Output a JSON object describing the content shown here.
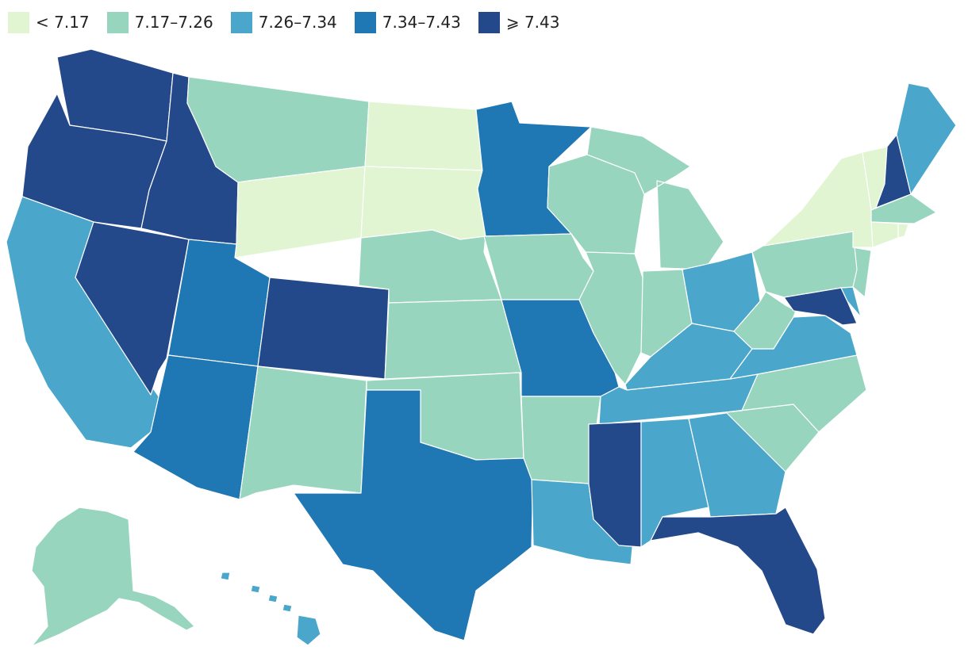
{
  "legend": [
    {
      "label": "< 7.17",
      "color": "#e1f5d2"
    },
    {
      "label": "7.17–7.26",
      "color": "#98d5bf"
    },
    {
      "label": "7.26–7.34",
      "color": "#4aa7cb"
    },
    {
      "label": "7.34–7.43",
      "color": "#1f77b4"
    },
    {
      "label": "⩾ 7.43",
      "color": "#24498a"
    }
  ],
  "states": {
    "WA": 4,
    "OR": 4,
    "CA": 2,
    "NV": 4,
    "ID": 4,
    "MT": 1,
    "WY": 0,
    "UT": 3,
    "AZ": 3,
    "CO": 4,
    "NM": 1,
    "ND": 0,
    "SD": 0,
    "NE": 1,
    "KS": 1,
    "OK": 1,
    "TX": 3,
    "MN": 3,
    "IA": 1,
    "MO": 3,
    "AR": 1,
    "LA": 2,
    "WI": 1,
    "IL": 1,
    "MI": 1,
    "IN": 1,
    "OH": 2,
    "KY": 2,
    "TN": 2,
    "MS": 4,
    "AL": 2,
    "GA": 2,
    "FL": 4,
    "SC": 1,
    "NC": 1,
    "VA": 2,
    "WV": 1,
    "MD": 4,
    "DE": 2,
    "NJ": 1,
    "PA": 1,
    "NY": 0,
    "VT": 0,
    "NH": 4,
    "ME": 2,
    "MA": 1,
    "CT": 0,
    "RI": 0,
    "AK": 1,
    "HI": 2
  }
}
